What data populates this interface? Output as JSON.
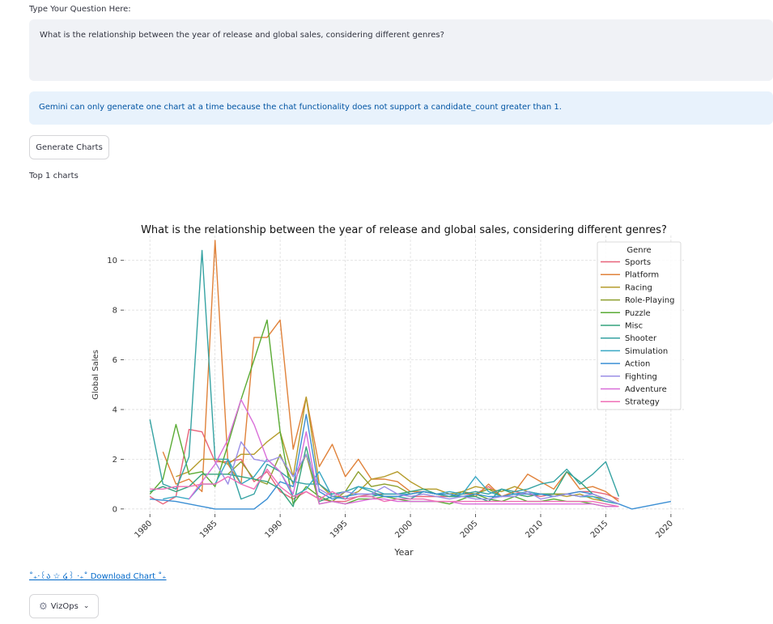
{
  "question": {
    "label": "Type Your Question Here:",
    "value": "What is the relationship between the year of release and global sales, considering different genres?"
  },
  "info_message": "Gemini can only generate one chart at a time because the chat functionality does not support a candidate_count greater than 1.",
  "generate_button": "Generate Charts",
  "top_charts_label": "Top 1 charts",
  "download_link": "˚₊‧꒰ა ☆ ໒꒱ ‧₊˚ Download Chart ˚₊",
  "vizops_button": "VizOps",
  "chart_data": {
    "type": "line",
    "title": "What is the relationship between the year of release and global sales, considering different genres?",
    "xlabel": "Year",
    "ylabel": "Global Sales",
    "xlim": [
      1978,
      2021
    ],
    "ylim": [
      -0.2,
      11.0
    ],
    "xticks": [
      1980,
      1985,
      1990,
      1995,
      2000,
      2005,
      2010,
      2015,
      2020
    ],
    "yticks": [
      0,
      2,
      4,
      6,
      8,
      10
    ],
    "grid": true,
    "legend": {
      "title": "Genre",
      "placement": "top-right"
    },
    "series": [
      {
        "name": "Sports",
        "color": "#e8637a",
        "x": [
          1980,
          1981,
          1982,
          1983,
          1984,
          1985,
          1986,
          1987,
          1988,
          1989,
          1990,
          1991,
          1992,
          1993,
          1994,
          1995,
          1996,
          1997,
          1998,
          1999,
          2000,
          2001,
          2002,
          2003,
          2004,
          2005,
          2006,
          2007,
          2008,
          2009,
          2010,
          2011,
          2012,
          2013,
          2014,
          2015,
          2016
        ],
        "y": [
          0.5,
          0.2,
          0.5,
          3.2,
          3.1,
          1.9,
          1.9,
          2.0,
          1.1,
          1.5,
          0.7,
          0.4,
          0.7,
          0.4,
          0.3,
          0.3,
          0.5,
          0.6,
          0.6,
          0.6,
          0.5,
          0.5,
          0.5,
          0.5,
          0.6,
          0.6,
          0.9,
          0.5,
          0.7,
          0.6,
          0.5,
          0.6,
          0.6,
          0.7,
          0.7,
          0.6,
          0.4
        ]
      },
      {
        "name": "Platform",
        "color": "#e0823a",
        "x": [
          1981,
          1982,
          1983,
          1984,
          1985,
          1986,
          1987,
          1988,
          1989,
          1990,
          1991,
          1992,
          1993,
          1994,
          1995,
          1996,
          1997,
          1998,
          1999,
          2000,
          2001,
          2002,
          2003,
          2004,
          2005,
          2006,
          2007,
          2008,
          2009,
          2010,
          2011,
          2012,
          2013,
          2014,
          2015,
          2016
        ],
        "y": [
          2.3,
          1.0,
          1.2,
          0.7,
          10.8,
          1.8,
          1.0,
          6.9,
          6.9,
          7.6,
          2.4,
          4.5,
          1.7,
          2.6,
          1.3,
          2.0,
          1.2,
          1.2,
          1.1,
          0.7,
          0.7,
          0.6,
          0.5,
          0.7,
          0.5,
          1.0,
          0.5,
          0.7,
          1.4,
          1.1,
          0.8,
          1.5,
          0.8,
          0.9,
          0.7,
          0.3
        ]
      },
      {
        "name": "Racing",
        "color": "#b59c2c",
        "x": [
          1982,
          1983,
          1984,
          1985,
          1986,
          1987,
          1988,
          1989,
          1990,
          1991,
          1992,
          1993,
          1994,
          1995,
          1996,
          1997,
          1998,
          1999,
          2000,
          2001,
          2002,
          2003,
          2004,
          2005,
          2006,
          2007,
          2008,
          2009,
          2010,
          2011,
          2012,
          2013,
          2014,
          2015,
          2016
        ],
        "y": [
          1.3,
          1.5,
          2.0,
          2.0,
          1.8,
          2.2,
          2.2,
          2.7,
          3.1,
          1.3,
          4.5,
          1.0,
          0.5,
          0.5,
          0.7,
          1.2,
          1.3,
          1.5,
          1.1,
          0.8,
          0.8,
          0.6,
          0.7,
          0.9,
          0.8,
          0.7,
          0.9,
          0.7,
          0.6,
          0.6,
          0.5,
          0.6,
          0.4,
          0.3,
          0.2
        ]
      },
      {
        "name": "Role-Playing",
        "color": "#8e9f2e",
        "x": [
          1986,
          1987,
          1988,
          1989,
          1990,
          1991,
          1992,
          1993,
          1994,
          1995,
          1996,
          1997,
          1998,
          1999,
          2000,
          2001,
          2002,
          2003,
          2004,
          2005,
          2006,
          2007,
          2008,
          2009,
          2010,
          2011,
          2012,
          2013,
          2014,
          2015,
          2016
        ],
        "y": [
          1.4,
          1.9,
          1.2,
          1.0,
          2.2,
          1.0,
          2.2,
          0.2,
          0.3,
          0.7,
          1.5,
          0.9,
          1.0,
          0.9,
          0.6,
          0.7,
          0.6,
          0.5,
          0.7,
          0.6,
          0.8,
          0.5,
          0.6,
          0.5,
          0.6,
          0.6,
          0.6,
          0.5,
          0.5,
          0.4,
          0.2
        ]
      },
      {
        "name": "Puzzle",
        "color": "#5aab34",
        "x": [
          1980,
          1981,
          1982,
          1983,
          1984,
          1985,
          1986,
          1987,
          1988,
          1989,
          1990,
          1991,
          1992,
          1993,
          1994,
          1995,
          1996,
          1997,
          1998,
          1999,
          2000,
          2001,
          2002,
          2003,
          2004,
          2005,
          2006,
          2007,
          2008,
          2009,
          2010,
          2011,
          2012,
          2013,
          2014,
          2015,
          2016
        ],
        "y": [
          0.6,
          1.2,
          3.4,
          1.4,
          1.5,
          0.9,
          2.6,
          4.4,
          6.0,
          7.6,
          3.1,
          0.2,
          0.9,
          0.5,
          0.3,
          0.2,
          0.4,
          0.4,
          0.5,
          0.4,
          0.3,
          0.3,
          0.3,
          0.2,
          0.4,
          0.6,
          0.4,
          0.3,
          0.5,
          0.3,
          0.3,
          0.4,
          0.3,
          0.3,
          0.2,
          0.1,
          0.1
        ]
      },
      {
        "name": "Misc",
        "color": "#35a37d",
        "x": [
          1980,
          1981,
          1982,
          1983,
          1984,
          1985,
          1986,
          1987,
          1988,
          1989,
          1990,
          1991,
          1992,
          1993,
          1994,
          1995,
          1996,
          1997,
          1998,
          1999,
          2000,
          2001,
          2002,
          2003,
          2004,
          2005,
          2006,
          2007,
          2008,
          2009,
          2010,
          2011,
          2012,
          2013,
          2014,
          2015,
          2016
        ],
        "y": [
          0.7,
          0.9,
          0.7,
          0.9,
          1.4,
          1.4,
          1.4,
          1.3,
          1.2,
          1.1,
          0.8,
          0.1,
          2.5,
          0.3,
          0.5,
          0.4,
          0.5,
          0.5,
          0.6,
          0.6,
          0.7,
          0.8,
          0.6,
          0.5,
          0.5,
          0.5,
          0.3,
          0.8,
          0.6,
          0.5,
          0.6,
          0.6,
          1.5,
          1.1,
          0.6,
          0.4,
          0.2
        ]
      },
      {
        "name": "Shooter",
        "color": "#36a3a3",
        "x": [
          1980,
          1981,
          1982,
          1983,
          1984,
          1985,
          1986,
          1987,
          1988,
          1989,
          1990,
          1991,
          1992,
          1993,
          1994,
          1995,
          1996,
          1997,
          1998,
          1999,
          2000,
          2001,
          2002,
          2003,
          2004,
          2005,
          2006,
          2007,
          2008,
          2009,
          2010,
          2011,
          2012,
          2013,
          2014,
          2015,
          2016
        ],
        "y": [
          3.6,
          1.0,
          0.8,
          2.1,
          10.4,
          2.0,
          2.0,
          0.4,
          0.6,
          1.8,
          1.5,
          1.1,
          1.0,
          1.0,
          0.6,
          0.7,
          0.9,
          0.7,
          0.5,
          0.5,
          0.4,
          0.7,
          0.6,
          0.5,
          0.6,
          0.7,
          0.6,
          0.8,
          0.7,
          0.8,
          1.0,
          1.1,
          1.6,
          1.0,
          1.4,
          1.9,
          0.5
        ]
      },
      {
        "name": "Simulation",
        "color": "#39a8c4",
        "x": [
          1981,
          1982,
          1983,
          1984,
          1985,
          1986,
          1987,
          1988,
          1989,
          1990,
          1991,
          1992,
          1993,
          1994,
          1995,
          1996,
          1997,
          1998,
          1999,
          2000,
          2001,
          2002,
          2003,
          2004,
          2005,
          2006,
          2007,
          2008,
          2009,
          2010,
          2011,
          2012,
          2013,
          2014,
          2015,
          2016
        ],
        "y": [
          0.4,
          0.5,
          0.4,
          1.0,
          1.0,
          2.0,
          1.0,
          1.3,
          2.0,
          1.5,
          0.5,
          0.8,
          1.5,
          0.5,
          0.4,
          0.9,
          0.8,
          0.6,
          0.6,
          0.6,
          0.7,
          0.6,
          0.7,
          0.6,
          1.3,
          0.7,
          0.5,
          0.6,
          0.7,
          0.6,
          0.5,
          0.6,
          0.5,
          0.5,
          0.3,
          0.2
        ]
      },
      {
        "name": "Action",
        "color": "#3b8fd4",
        "x": [
          1980,
          1981,
          1982,
          1983,
          1984,
          1985,
          1986,
          1987,
          1988,
          1989,
          1990,
          1991,
          1992,
          1993,
          1994,
          1995,
          1996,
          1997,
          1998,
          1999,
          2000,
          2001,
          2002,
          2003,
          2004,
          2005,
          2006,
          2007,
          2008,
          2009,
          2010,
          2011,
          2012,
          2013,
          2014,
          2015,
          2016,
          2017,
          2020
        ],
        "y": [
          0.4,
          0.35,
          0.3,
          0.2,
          0.1,
          0.0,
          0.0,
          0.0,
          0.0,
          0.4,
          1.1,
          0.9,
          3.8,
          0.7,
          0.4,
          0.5,
          0.6,
          0.6,
          0.5,
          0.5,
          0.6,
          0.7,
          0.6,
          0.6,
          0.5,
          0.6,
          0.5,
          0.5,
          0.6,
          0.6,
          0.6,
          0.5,
          0.6,
          0.7,
          0.6,
          0.4,
          0.2,
          0.0,
          0.3
        ]
      },
      {
        "name": "Fighting",
        "color": "#9b8ee6",
        "x": [
          1985,
          1986,
          1987,
          1988,
          1989,
          1990,
          1991,
          1992,
          1993,
          1994,
          1995,
          1996,
          1997,
          1998,
          1999,
          2000,
          2001,
          2002,
          2003,
          2004,
          2005,
          2006,
          2007,
          2008,
          2009,
          2010,
          2011,
          2012,
          2013,
          2014,
          2015,
          2016
        ],
        "y": [
          1.9,
          1.0,
          2.7,
          2.0,
          1.9,
          2.1,
          1.3,
          2.2,
          0.8,
          0.5,
          0.7,
          0.6,
          0.6,
          0.9,
          0.6,
          0.5,
          0.6,
          0.5,
          0.4,
          0.5,
          0.4,
          0.4,
          0.5,
          0.5,
          0.7,
          0.4,
          0.5,
          0.6,
          0.5,
          0.6,
          0.4,
          0.2
        ]
      },
      {
        "name": "Adventure",
        "color": "#d96fd9",
        "x": [
          1983,
          1984,
          1985,
          1986,
          1987,
          1988,
          1989,
          1990,
          1991,
          1992,
          1993,
          1994,
          1995,
          1996,
          1997,
          1998,
          1999,
          2000,
          2001,
          2002,
          2003,
          2004,
          2005,
          2006,
          2007,
          2008,
          2009,
          2010,
          2011,
          2012,
          2013,
          2014,
          2015,
          2016
        ],
        "y": [
          0.4,
          1.1,
          1.8,
          2.8,
          4.4,
          3.4,
          2.0,
          1.5,
          0.6,
          3.1,
          0.2,
          0.3,
          0.2,
          0.3,
          0.4,
          0.4,
          0.3,
          0.3,
          0.3,
          0.3,
          0.3,
          0.2,
          0.2,
          0.2,
          0.2,
          0.2,
          0.2,
          0.2,
          0.2,
          0.2,
          0.2,
          0.2,
          0.1,
          0.1
        ]
      },
      {
        "name": "Strategy",
        "color": "#ef6fb6",
        "x": [
          1980,
          1981,
          1982,
          1983,
          1984,
          1985,
          1986,
          1987,
          1988,
          1989,
          1990,
          1991,
          1992,
          1993,
          1994,
          1995,
          1996,
          1997,
          1998,
          1999,
          2000,
          2001,
          2002,
          2003,
          2004,
          2005,
          2006,
          2007,
          2008,
          2009,
          2010,
          2011,
          2012,
          2013,
          2014,
          2015,
          2016
        ],
        "y": [
          0.8,
          0.8,
          0.9,
          0.9,
          1.0,
          1.0,
          1.3,
          1.0,
          0.8,
          1.6,
          0.9,
          0.5,
          0.7,
          0.4,
          0.7,
          0.4,
          0.5,
          0.5,
          0.3,
          0.4,
          0.4,
          0.4,
          0.3,
          0.3,
          0.3,
          0.3,
          0.3,
          0.3,
          0.3,
          0.3,
          0.3,
          0.3,
          0.3,
          0.3,
          0.3,
          0.2,
          0.1
        ]
      }
    ]
  }
}
